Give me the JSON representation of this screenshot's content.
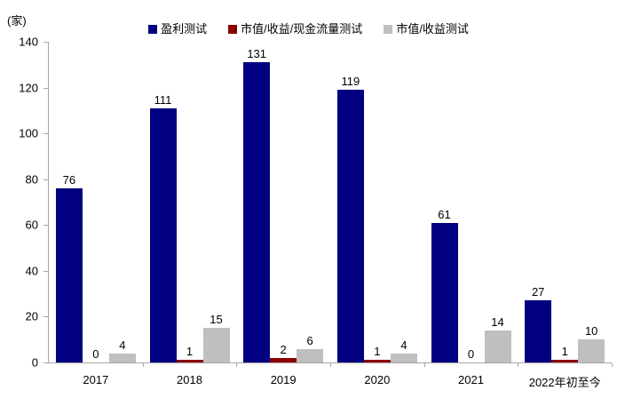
{
  "chart_data": {
    "type": "bar",
    "unit": "(家)",
    "categories": [
      "2017",
      "2018",
      "2019",
      "2020",
      "2021",
      "2022年初至今"
    ],
    "series": [
      {
        "name": "盈利测试",
        "color": "#000080",
        "values": [
          76,
          111,
          131,
          119,
          61,
          27
        ]
      },
      {
        "name": "市值/收益/现金流量测试",
        "color": "#8b0000",
        "values": [
          0,
          1,
          2,
          1,
          0,
          1
        ]
      },
      {
        "name": "市值/收益测试",
        "color": "#bfbfbf",
        "values": [
          4,
          15,
          6,
          4,
          14,
          10
        ]
      }
    ],
    "ylim": [
      0,
      140
    ],
    "yticks": [
      0,
      20,
      40,
      60,
      80,
      100,
      120,
      140
    ],
    "grid": false,
    "legend_position": "top",
    "data_labels": true,
    "axis_color": "#a6a6a6",
    "text_color": "#000000"
  }
}
